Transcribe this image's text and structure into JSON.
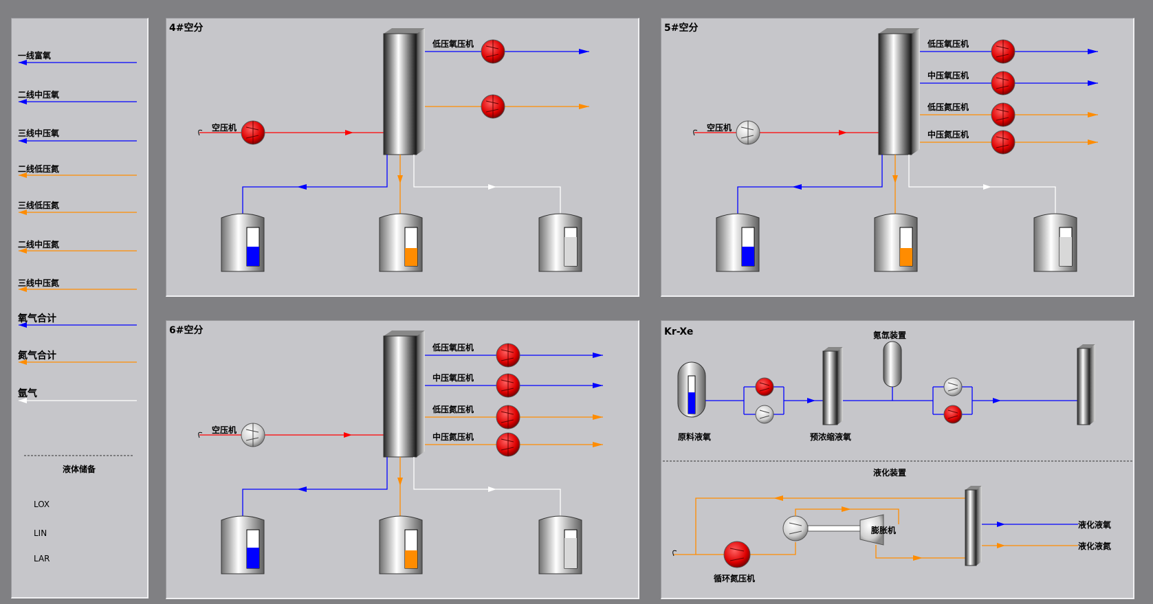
{
  "legend": {
    "items": [
      {
        "label": "一线富氧",
        "color": "#0000ff"
      },
      {
        "label": "二线中压氧",
        "color": "#0000ff"
      },
      {
        "label": "三线中压氧",
        "color": "#0000ff"
      },
      {
        "label": "二线低压氮",
        "color": "#ff8c00"
      },
      {
        "label": "三线低压氮",
        "color": "#ff8c00"
      },
      {
        "label": "二线中压氮",
        "color": "#ff8c00"
      },
      {
        "label": "三线中压氮",
        "color": "#ff8c00"
      },
      {
        "label": "氧气合计",
        "color": "#0000ff"
      },
      {
        "label": "氮气合计",
        "color": "#ff8c00"
      },
      {
        "label": "氩气",
        "color": "#ffffff"
      }
    ],
    "storage_title": "液体储备",
    "storage": [
      "LOX",
      "LIN",
      "LAR"
    ]
  },
  "units": {
    "u4": {
      "title": "4#空分",
      "air_comp": "空压机",
      "comp1": "低压氧压机",
      "comp2": ""
    },
    "u5": {
      "title": "5#空分",
      "air_comp": "空压机",
      "comps": [
        "低压氧压机",
        "中压氧压机",
        "低压氮压机",
        "中压氮压机"
      ]
    },
    "u6": {
      "title": "6#空分",
      "air_comp": "空压机",
      "comps": [
        "低压氧压机",
        "中压氧压机",
        "低压氮压机",
        "中压氮压机"
      ]
    }
  },
  "tank_levels": {
    "u4": {
      "lox": 0.5,
      "lin": 0.45,
      "lar": 0.7
    },
    "u5": {
      "lox": 0.5,
      "lin": 0.45,
      "lar": 0.7
    },
    "u6": {
      "lox": 0.55,
      "lin": 0.45,
      "lar": 0.75
    }
  },
  "krxe": {
    "title": "Kr-Xe",
    "raw_lox": "原料液氧",
    "kr_device": "氪氙装置",
    "preconc": "预浓缩液氧",
    "liq_title": "液化装置",
    "expander": "膨胀机",
    "cycle_comp": "循环氮压机",
    "liq_o2": "液化液氧",
    "liq_n2": "液化液氮",
    "raw_level": 0.55
  },
  "colors": {
    "oxygen": "#0000ff",
    "nitrogen": "#ff8c00",
    "argon": "#ffffff",
    "air": "#ff0000"
  }
}
